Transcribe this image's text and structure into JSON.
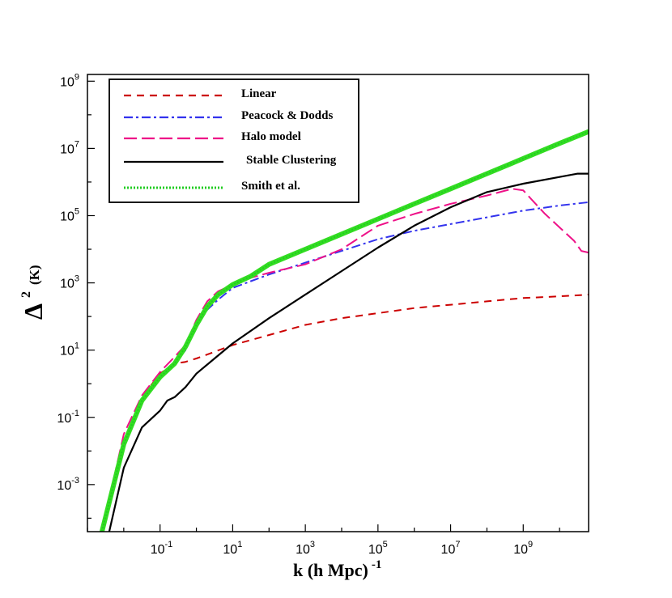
{
  "chart_data": {
    "type": "line",
    "title": "",
    "xlabel": "k (h Mpc)",
    "xlabel_superscript": "-1",
    "ylabel_symbol": "Δ",
    "ylabel_superscript": "2",
    "ylabel_unit": "(K)",
    "x_scale": "log",
    "y_scale": "log",
    "xlim_log10": [
      -3,
      10.8
    ],
    "ylim_log10": [
      -4.4,
      9.2
    ],
    "x_ticks": [
      {
        "base": "10",
        "exp": "-1",
        "log": -1
      },
      {
        "base": "10",
        "exp": "1",
        "log": 1
      },
      {
        "base": "10",
        "exp": "3",
        "log": 3
      },
      {
        "base": "10",
        "exp": "5",
        "log": 5
      },
      {
        "base": "10",
        "exp": "7",
        "log": 7
      },
      {
        "base": "10",
        "exp": "9",
        "log": 9
      }
    ],
    "y_ticks": [
      {
        "base": "10",
        "exp": "-3",
        "log": -3
      },
      {
        "base": "10",
        "exp": "-1",
        "log": -1
      },
      {
        "base": "10",
        "exp": "1",
        "log": 1
      },
      {
        "base": "10",
        "exp": "3",
        "log": 3
      },
      {
        "base": "10",
        "exp": "5",
        "log": 5
      },
      {
        "base": "10",
        "exp": "7",
        "log": 7
      },
      {
        "base": "10",
        "exp": "9",
        "log": 9
      }
    ],
    "legend_position": "top-left",
    "series": [
      {
        "name": "Linear",
        "color": "#cc0000",
        "style": "dashed",
        "width": 2,
        "points_log10": [
          [
            -2.6,
            -4.4
          ],
          [
            -2.0,
            -1.7
          ],
          [
            -1.5,
            -0.4
          ],
          [
            -1.0,
            0.3
          ],
          [
            -0.6,
            0.6
          ],
          [
            -0.3,
            0.65
          ],
          [
            0,
            0.75
          ],
          [
            0.5,
            0.95
          ],
          [
            1,
            1.15
          ],
          [
            2,
            1.45
          ],
          [
            3,
            1.75
          ],
          [
            4,
            1.95
          ],
          [
            5,
            2.1
          ],
          [
            6,
            2.25
          ],
          [
            7,
            2.35
          ],
          [
            8,
            2.45
          ],
          [
            9,
            2.55
          ],
          [
            10,
            2.6
          ],
          [
            10.8,
            2.65
          ]
        ]
      },
      {
        "name": "Peacock & Dodds",
        "color": "#3333ee",
        "style": "dashdot",
        "width": 2,
        "points_log10": [
          [
            -2.6,
            -4.4
          ],
          [
            -2.0,
            -1.7
          ],
          [
            -1.5,
            -0.5
          ],
          [
            -1.0,
            0.2
          ],
          [
            -0.6,
            0.6
          ],
          [
            -0.3,
            1.0
          ],
          [
            0,
            1.7
          ],
          [
            0.3,
            2.2
          ],
          [
            0.6,
            2.5
          ],
          [
            1,
            2.85
          ],
          [
            1.5,
            3.05
          ],
          [
            2,
            3.25
          ],
          [
            3,
            3.6
          ],
          [
            4,
            3.95
          ],
          [
            5,
            4.3
          ],
          [
            6,
            4.55
          ],
          [
            7,
            4.75
          ],
          [
            8,
            4.95
          ],
          [
            9,
            5.15
          ],
          [
            10,
            5.3
          ],
          [
            10.8,
            5.4
          ]
        ]
      },
      {
        "name": "Halo model",
        "color": "#ee1188",
        "style": "longdash",
        "width": 2,
        "points_log10": [
          [
            -2.6,
            -4.4
          ],
          [
            -2.0,
            -1.5
          ],
          [
            -1.5,
            -0.35
          ],
          [
            -1.0,
            0.35
          ],
          [
            -0.6,
            0.8
          ],
          [
            -0.3,
            1.15
          ],
          [
            0,
            1.9
          ],
          [
            0.3,
            2.45
          ],
          [
            0.6,
            2.75
          ],
          [
            1,
            2.95
          ],
          [
            1.5,
            3.15
          ],
          [
            2,
            3.3
          ],
          [
            3,
            3.55
          ],
          [
            4,
            4.0
          ],
          [
            5,
            4.7
          ],
          [
            6,
            5.05
          ],
          [
            7,
            5.35
          ],
          [
            8,
            5.6
          ],
          [
            8.7,
            5.8
          ],
          [
            9,
            5.75
          ],
          [
            9.3,
            5.4
          ],
          [
            9.6,
            5.05
          ],
          [
            10,
            4.65
          ],
          [
            10.4,
            4.25
          ],
          [
            10.6,
            3.95
          ],
          [
            10.8,
            3.9
          ]
        ]
      },
      {
        "name": "Stable Clustering",
        "color": "#000000",
        "style": "solid",
        "width": 2.2,
        "points_log10": [
          [
            -2.4,
            -4.4
          ],
          [
            -2.0,
            -2.5
          ],
          [
            -1.5,
            -1.3
          ],
          [
            -1.0,
            -0.8
          ],
          [
            -0.8,
            -0.5
          ],
          [
            -0.6,
            -0.4
          ],
          [
            -0.3,
            -0.1
          ],
          [
            0,
            0.3
          ],
          [
            0.5,
            0.75
          ],
          [
            1,
            1.2
          ],
          [
            2,
            1.95
          ],
          [
            3,
            2.65
          ],
          [
            4,
            3.35
          ],
          [
            5,
            4.05
          ],
          [
            6,
            4.7
          ],
          [
            7,
            5.25
          ],
          [
            8,
            5.7
          ],
          [
            9,
            5.95
          ],
          [
            10,
            6.15
          ],
          [
            10.5,
            6.25
          ],
          [
            10.8,
            6.25
          ]
        ]
      },
      {
        "name": "Smith et al.",
        "color": "#22cc22",
        "style": "dotted",
        "width": 2,
        "heavy_color": "#33dd22",
        "heavy_width": 6,
        "points_log10": [
          [
            -2.6,
            -4.4
          ],
          [
            -2.0,
            -1.8
          ],
          [
            -1.5,
            -0.5
          ],
          [
            -1.0,
            0.2
          ],
          [
            -0.6,
            0.6
          ],
          [
            -0.3,
            1.1
          ],
          [
            0,
            1.75
          ],
          [
            0.3,
            2.3
          ],
          [
            0.6,
            2.65
          ],
          [
            1,
            2.95
          ],
          [
            1.5,
            3.2
          ],
          [
            2,
            3.55
          ],
          [
            3,
            4.0
          ],
          [
            4,
            4.45
          ],
          [
            5,
            4.9
          ],
          [
            6,
            5.35
          ],
          [
            7,
            5.8
          ],
          [
            8,
            6.25
          ],
          [
            9,
            6.7
          ],
          [
            10,
            7.15
          ],
          [
            10.8,
            7.5
          ]
        ]
      }
    ]
  }
}
